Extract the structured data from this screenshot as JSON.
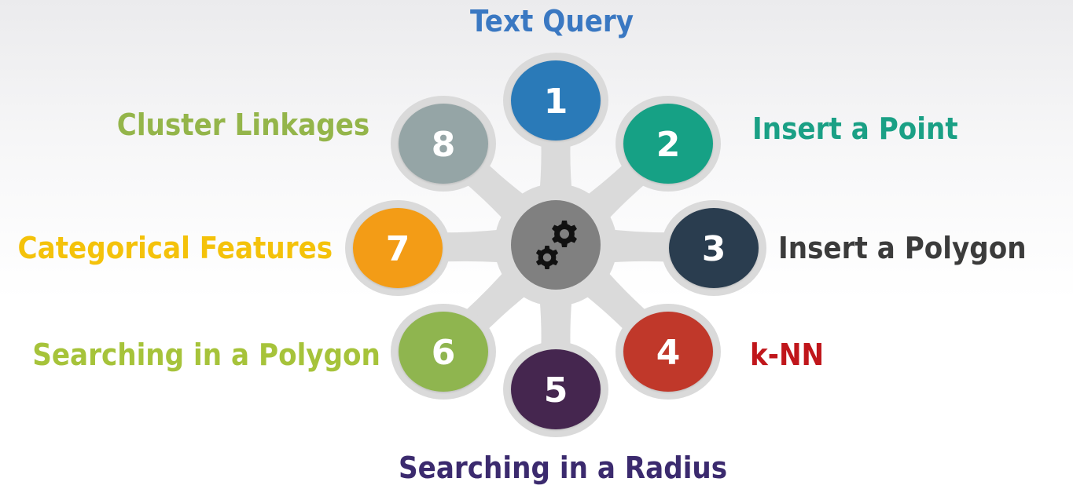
{
  "center": {
    "icon": "gears-icon",
    "color": "#808080"
  },
  "items": [
    {
      "number": "1",
      "label": "Text Query",
      "color": "#2a7ab8",
      "label_color": "#3a78c2"
    },
    {
      "number": "2",
      "label": "Insert a Point",
      "color": "#17a185",
      "label_color": "#1aa085"
    },
    {
      "number": "3",
      "label": "Insert a Polygon",
      "color": "#2c3e50",
      "label_color": "#3b3b3b"
    },
    {
      "number": "4",
      "label": "k-NN",
      "color": "#c0392b",
      "label_color": "#c0161b"
    },
    {
      "number": "5",
      "label": "Searching in a Radius",
      "color": "#45284f",
      "label_color": "#3b2a6e"
    },
    {
      "number": "6",
      "label": "Searching in a Polygon",
      "color": "#8fb550",
      "label_color": "#a6c33a"
    },
    {
      "number": "7",
      "label": "Categorical Features",
      "color": "#f39c12",
      "label_color": "#f4c20a"
    },
    {
      "number": "8",
      "label": "Cluster Linkages",
      "color": "#95a5a6",
      "label_color": "#94b54a"
    }
  ],
  "hub_color": "#dadada"
}
